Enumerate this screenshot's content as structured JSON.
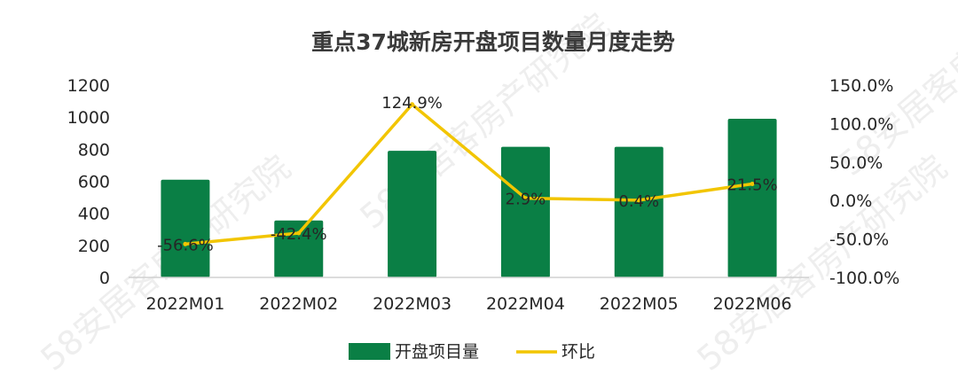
{
  "watermark_text": "58安居客房产研究院",
  "chart_data": {
    "type": "bar",
    "title": "重点37城新房开盘项目数量月度走势",
    "categories": [
      "2022M01",
      "2022M02",
      "2022M03",
      "2022M04",
      "2022M05",
      "2022M06"
    ],
    "series": [
      {
        "name": "开盘项目量",
        "type": "bar",
        "axis": "left",
        "color": "#0a7f45",
        "values": [
          610,
          355,
          790,
          815,
          815,
          990
        ]
      },
      {
        "name": "环比",
        "type": "line",
        "axis": "right",
        "color": "#f2c500",
        "values": [
          -56.6,
          -42.4,
          124.9,
          2.9,
          0.4,
          21.5
        ],
        "labels": [
          "-56.6%",
          "-42.4%",
          "124.9%",
          "2.9%",
          "0.4%",
          "21.5%"
        ]
      }
    ],
    "y_left": {
      "min": 0,
      "max": 1200,
      "ticks": [
        "0",
        "200",
        "400",
        "600",
        "800",
        "1000",
        "1200"
      ]
    },
    "y_right": {
      "min": -100,
      "max": 150,
      "ticks": [
        "-100.0%",
        "-50.0%",
        "0.0%",
        "50.0%",
        "100.0%",
        "150.0%"
      ]
    },
    "grid": false,
    "legend_position": "bottom"
  }
}
